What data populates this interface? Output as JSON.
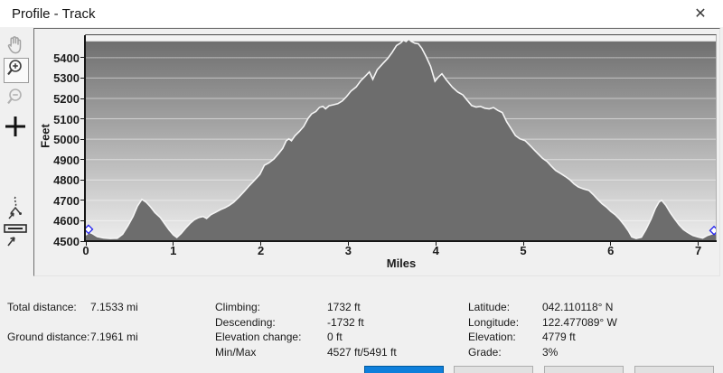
{
  "window": {
    "title": "Profile - Track",
    "close_glyph": "✕"
  },
  "toolbar": {
    "items": [
      {
        "name": "pan-tool",
        "enabled": false
      },
      {
        "name": "zoom-in-tool",
        "selected": true
      },
      {
        "name": "zoom-out-tool",
        "enabled": false
      },
      {
        "name": "crosshair-tool",
        "enabled": true
      },
      {
        "name": "track-point-tool",
        "enabled": true
      },
      {
        "name": "measure-tool",
        "enabled": true
      }
    ]
  },
  "chart_data": {
    "type": "area",
    "title": "",
    "xlabel": "Miles",
    "ylabel": "Feet",
    "xlim": [
      0,
      7.2
    ],
    "ylim": [
      4500,
      5510
    ],
    "x_ticks": [
      0,
      1,
      2,
      3,
      4,
      5,
      6,
      7
    ],
    "y_ticks": [
      4500,
      4600,
      4700,
      4800,
      4900,
      5000,
      5100,
      5200,
      5300,
      5400
    ],
    "grid": true,
    "legend": "none",
    "colors": {
      "terrain_fill": "#6d6d6d",
      "terrain_line": "#f5f5f5",
      "bg_gradient_top": "#6f6f6f",
      "bg_gradient_bottom": "#eeeeee",
      "bg_top_strip": "#f3f3f3",
      "gridline": "rgba(255,255,255,0.5)",
      "marker_stroke": "#2a2aee",
      "marker_fill": "#ffffff"
    },
    "markers": [
      {
        "name": "track-start-marker",
        "x": 0.03,
        "y": 4558
      },
      {
        "name": "track-end-marker",
        "x": 7.18,
        "y": 4552
      }
    ],
    "series": [
      {
        "name": "elevation-profile",
        "points": [
          [
            0,
            4530
          ],
          [
            0.04,
            4544
          ],
          [
            0.08,
            4536
          ],
          [
            0.13,
            4522
          ],
          [
            0.2,
            4516
          ],
          [
            0.28,
            4513
          ],
          [
            0.36,
            4514
          ],
          [
            0.42,
            4534
          ],
          [
            0.48,
            4575
          ],
          [
            0.54,
            4622
          ],
          [
            0.59,
            4672
          ],
          [
            0.64,
            4705
          ],
          [
            0.69,
            4691
          ],
          [
            0.74,
            4668
          ],
          [
            0.79,
            4640
          ],
          [
            0.85,
            4616
          ],
          [
            0.9,
            4586
          ],
          [
            0.95,
            4556
          ],
          [
            1,
            4531
          ],
          [
            1.04,
            4518
          ],
          [
            1.09,
            4538
          ],
          [
            1.14,
            4564
          ],
          [
            1.19,
            4587
          ],
          [
            1.24,
            4605
          ],
          [
            1.29,
            4616
          ],
          [
            1.34,
            4621
          ],
          [
            1.38,
            4611
          ],
          [
            1.43,
            4630
          ],
          [
            1.48,
            4641
          ],
          [
            1.54,
            4655
          ],
          [
            1.59,
            4664
          ],
          [
            1.64,
            4676
          ],
          [
            1.69,
            4691
          ],
          [
            1.75,
            4716
          ],
          [
            1.81,
            4744
          ],
          [
            1.87,
            4773
          ],
          [
            1.93,
            4800
          ],
          [
            1.99,
            4828
          ],
          [
            2.04,
            4872
          ],
          [
            2.09,
            4883
          ],
          [
            2.15,
            4903
          ],
          [
            2.2,
            4928
          ],
          [
            2.25,
            4955
          ],
          [
            2.29,
            4992
          ],
          [
            2.32,
            5002
          ],
          [
            2.35,
            4992
          ],
          [
            2.39,
            5017
          ],
          [
            2.44,
            5038
          ],
          [
            2.49,
            5062
          ],
          [
            2.54,
            5102
          ],
          [
            2.58,
            5124
          ],
          [
            2.63,
            5136
          ],
          [
            2.67,
            5156
          ],
          [
            2.71,
            5161
          ],
          [
            2.74,
            5149
          ],
          [
            2.78,
            5164
          ],
          [
            2.83,
            5169
          ],
          [
            2.88,
            5174
          ],
          [
            2.93,
            5187
          ],
          [
            2.98,
            5209
          ],
          [
            3.03,
            5236
          ],
          [
            3.09,
            5256
          ],
          [
            3.14,
            5286
          ],
          [
            3.19,
            5307
          ],
          [
            3.24,
            5330
          ],
          [
            3.28,
            5294
          ],
          [
            3.33,
            5341
          ],
          [
            3.39,
            5369
          ],
          [
            3.45,
            5396
          ],
          [
            3.5,
            5425
          ],
          [
            3.55,
            5459
          ],
          [
            3.6,
            5473
          ],
          [
            3.63,
            5486
          ],
          [
            3.66,
            5479
          ],
          [
            3.69,
            5491
          ],
          [
            3.72,
            5480
          ],
          [
            3.76,
            5471
          ],
          [
            3.8,
            5468
          ],
          [
            3.84,
            5446
          ],
          [
            3.89,
            5404
          ],
          [
            3.94,
            5358
          ],
          [
            3.99,
            5284
          ],
          [
            4.03,
            5305
          ],
          [
            4.07,
            5321
          ],
          [
            4.12,
            5291
          ],
          [
            4.19,
            5255
          ],
          [
            4.25,
            5232
          ],
          [
            4.31,
            5217
          ],
          [
            4.36,
            5190
          ],
          [
            4.41,
            5165
          ],
          [
            4.46,
            5158
          ],
          [
            4.51,
            5161
          ],
          [
            4.56,
            5152
          ],
          [
            4.61,
            5149
          ],
          [
            4.66,
            5155
          ],
          [
            4.71,
            5141
          ],
          [
            4.76,
            5131
          ],
          [
            4.81,
            5086
          ],
          [
            4.86,
            5052
          ],
          [
            4.91,
            5018
          ],
          [
            4.96,
            5002
          ],
          [
            5.02,
            4993
          ],
          [
            5.07,
            4972
          ],
          [
            5.12,
            4950
          ],
          [
            5.17,
            4928
          ],
          [
            5.22,
            4906
          ],
          [
            5.27,
            4891
          ],
          [
            5.32,
            4868
          ],
          [
            5.37,
            4847
          ],
          [
            5.43,
            4831
          ],
          [
            5.48,
            4817
          ],
          [
            5.53,
            4802
          ],
          [
            5.58,
            4781
          ],
          [
            5.63,
            4766
          ],
          [
            5.69,
            4756
          ],
          [
            5.75,
            4749
          ],
          [
            5.8,
            4728
          ],
          [
            5.85,
            4705
          ],
          [
            5.9,
            4683
          ],
          [
            5.95,
            4667
          ],
          [
            6,
            4646
          ],
          [
            6.05,
            4630
          ],
          [
            6.1,
            4608
          ],
          [
            6.15,
            4581
          ],
          [
            6.2,
            4551
          ],
          [
            6.24,
            4521
          ],
          [
            6.29,
            4513
          ],
          [
            6.35,
            4519
          ],
          [
            6.4,
            4556
          ],
          [
            6.46,
            4608
          ],
          [
            6.51,
            4661
          ],
          [
            6.55,
            4691
          ],
          [
            6.58,
            4701
          ],
          [
            6.63,
            4676
          ],
          [
            6.68,
            4639
          ],
          [
            6.73,
            4609
          ],
          [
            6.78,
            4580
          ],
          [
            6.83,
            4557
          ],
          [
            6.88,
            4542
          ],
          [
            6.94,
            4528
          ],
          [
            7,
            4520
          ],
          [
            7.05,
            4515
          ],
          [
            7.1,
            4527
          ],
          [
            7.16,
            4536
          ],
          [
            7.2,
            4538
          ]
        ]
      }
    ]
  },
  "stats": {
    "col1": [
      {
        "label": "Total distance:",
        "value": "7.1533 mi"
      },
      {
        "label": "Ground distance:",
        "value": "7.1961 mi"
      }
    ],
    "col2": [
      {
        "label": "Climbing:",
        "value": "1732 ft"
      },
      {
        "label": "Descending:",
        "value": "-1732 ft"
      },
      {
        "label": "Elevation change:",
        "value": "0 ft"
      },
      {
        "label": "Min/Max",
        "value": "4527 ft/5491 ft"
      }
    ],
    "col3": [
      {
        "label": "Latitude:",
        "value": "042.110118° N"
      },
      {
        "label": "Longitude:",
        "value": "122.477089° W"
      },
      {
        "label": "Elevation:",
        "value": "4779 ft"
      },
      {
        "label": "Grade:",
        "value": "3%"
      }
    ]
  },
  "footer": {
    "accent_color": "#0078d7",
    "button_count": 4
  }
}
